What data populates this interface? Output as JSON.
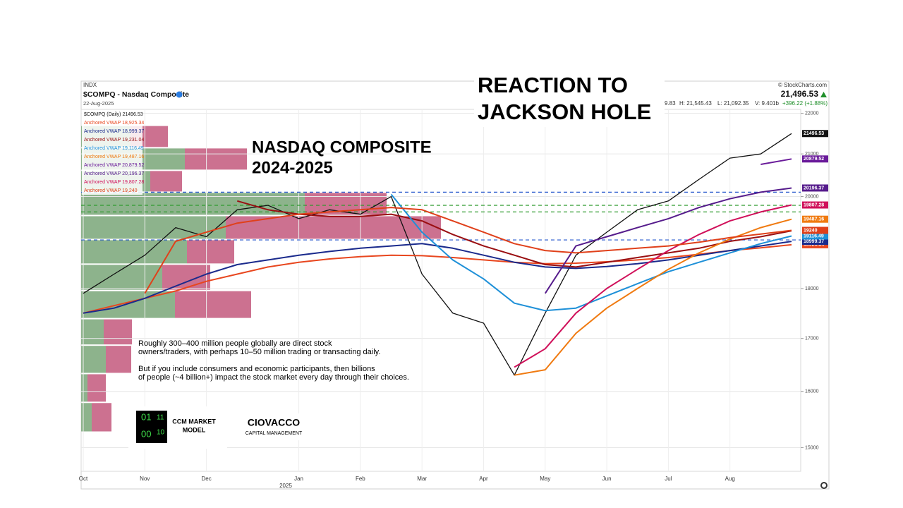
{
  "chart_data": {
    "type": "line",
    "exchange": "INDX",
    "title": "$COMPQ - Nasdaq Composite",
    "date": "22-Aug-2025",
    "source": "© StockCharts.com",
    "last_price": "21,496.53",
    "stats": [
      "9.83",
      "H: 21,545.43",
      "L: 21,092.35",
      "V: 9.401b"
    ],
    "change": "+396.22 (+1.88%)",
    "overlay_title": [
      "REACTION TO",
      "JACKSON HOLE"
    ],
    "chart_heading": [
      "NASDAQ COMPOSITE",
      "2024-2025"
    ],
    "notes": [
      [
        "Roughly 300–400 million people globally are direct stock",
        "owners/traders, with perhaps 10–50 million trading or transacting daily."
      ],
      [
        "But if you include consumers and economic participants, then billions",
        "of people (~4 billion+) impact the stock market every day through their choices."
      ]
    ],
    "logo_ccm": {
      "digits": [
        "01",
        "11",
        "00",
        "10"
      ],
      "text": [
        "CCM MARKET",
        "MODEL"
      ]
    },
    "logo_ciovacco": [
      "CIOVACCO",
      "CAPITAL MANAGEMENT"
    ],
    "year_label": "2025",
    "categories": [
      "Oct",
      null,
      "Nov",
      null,
      "Dec",
      null,
      null,
      "Jan",
      null,
      "Feb",
      null,
      "Mar",
      null,
      "Apr",
      null,
      "May",
      null,
      "Jun",
      null,
      "Jul",
      null,
      "Aug",
      null,
      null
    ],
    "log_scale": true,
    "grid": true,
    "ylim": [
      14600,
      22100
    ],
    "yticks": [
      15000,
      16000,
      17000,
      18000,
      20000,
      21000,
      22000
    ],
    "levels": [
      {
        "value": 20100,
        "color": "#2255cc"
      },
      {
        "value": 19800,
        "color": "#2e9a2e"
      },
      {
        "value": 19650,
        "color": "#2e9a2e"
      },
      {
        "value": 19030,
        "color": "#2255cc"
      }
    ],
    "volume_profile": {
      "bins": [
        15270,
        15800,
        16330,
        16870,
        17390,
        17960,
        18510,
        19040,
        19570,
        20100,
        20610,
        21150,
        21700
      ],
      "up": [
        15,
        9,
        35,
        32,
        133,
        115,
        150,
        205,
        317,
        98,
        147,
        70
      ],
      "down": [
        28,
        26,
        36,
        40,
        108,
        68,
        67,
        305,
        116,
        45,
        88,
        53
      ],
      "up_color": "#8db38c",
      "down_color": "#cc7190"
    },
    "series": [
      {
        "name": "$COMPQ (Daily) 21496.53",
        "color": "#111111",
        "values": [
          17900,
          18300,
          18700,
          19300,
          19100,
          19700,
          19800,
          19500,
          19700,
          19600,
          20000,
          18300,
          17500,
          17300,
          16300,
          17500,
          18700,
          19200,
          19700,
          19900,
          20400,
          20900,
          21000,
          21496.53
        ]
      },
      {
        "name": "Anchored VWAP 18,925.34",
        "color": "#e8461e",
        "values": [
          17500,
          17650,
          17800,
          17950,
          18150,
          18300,
          18450,
          18550,
          18620,
          18670,
          18700,
          18690,
          18650,
          18600,
          18550,
          18520,
          18530,
          18560,
          18600,
          18650,
          18720,
          18800,
          18860,
          18925.34
        ]
      },
      {
        "name": "Anchored VWAP 18,999.37",
        "color": "#1a2a8c",
        "values": [
          17500,
          17600,
          17800,
          18050,
          18300,
          18500,
          18600,
          18700,
          18780,
          18850,
          18900,
          18950,
          18850,
          18700,
          18550,
          18450,
          18420,
          18460,
          18520,
          18600,
          18700,
          18800,
          18900,
          18999.37
        ]
      },
      {
        "name": "Anchored VWAP 19,231.04",
        "color": "#9a0f12",
        "values": [
          null,
          null,
          null,
          null,
          null,
          19900,
          19700,
          19600,
          19550,
          19550,
          19600,
          19450,
          19150,
          18900,
          18700,
          18500,
          18450,
          18550,
          18650,
          18750,
          18850,
          19000,
          19100,
          19231.04
        ]
      },
      {
        "name": "Anchored VWAP 19,116.49",
        "color": "#1e90d8",
        "values": [
          null,
          null,
          null,
          null,
          null,
          null,
          null,
          null,
          null,
          null,
          20050,
          19200,
          18600,
          18200,
          17700,
          17550,
          17600,
          17850,
          18100,
          18350,
          18550,
          18750,
          18950,
          19116.49
        ]
      },
      {
        "name": "Anchored VWAP 19,487.16",
        "color": "#f07a10",
        "values": [
          null,
          null,
          null,
          null,
          null,
          null,
          null,
          null,
          null,
          null,
          null,
          null,
          null,
          null,
          16300,
          16400,
          17100,
          17600,
          18000,
          18400,
          18750,
          19050,
          19300,
          19487.16
        ]
      },
      {
        "name": "Anchored VWAP 20,879.52",
        "color": "#6a1b9a",
        "values": [
          null,
          null,
          null,
          null,
          null,
          null,
          null,
          null,
          null,
          null,
          null,
          null,
          null,
          null,
          null,
          null,
          null,
          null,
          null,
          null,
          null,
          null,
          20750,
          20879.52
        ]
      },
      {
        "name": "Anchored VWAP 20,196.37",
        "color": "#561c8c",
        "values": [
          null,
          null,
          null,
          null,
          null,
          null,
          null,
          null,
          null,
          null,
          null,
          null,
          null,
          null,
          null,
          17900,
          18900,
          19100,
          19300,
          19500,
          19750,
          19950,
          20100,
          20196.37
        ]
      },
      {
        "name": "Anchored VWAP 19,807.28",
        "color": "#d0105a",
        "values": [
          null,
          null,
          null,
          null,
          null,
          null,
          null,
          null,
          null,
          null,
          null,
          null,
          null,
          null,
          16450,
          16800,
          17500,
          18000,
          18400,
          18800,
          19150,
          19450,
          19650,
          19807.28
        ]
      },
      {
        "name": "Anchored VWAP 19,240",
        "color": "#e0401a",
        "values": [
          null,
          null,
          17900,
          19000,
          19200,
          19400,
          19500,
          19600,
          19650,
          19700,
          19750,
          19700,
          19450,
          19200,
          18950,
          18800,
          18750,
          18800,
          18850,
          18900,
          18980,
          19080,
          19160,
          19240
        ]
      }
    ]
  }
}
